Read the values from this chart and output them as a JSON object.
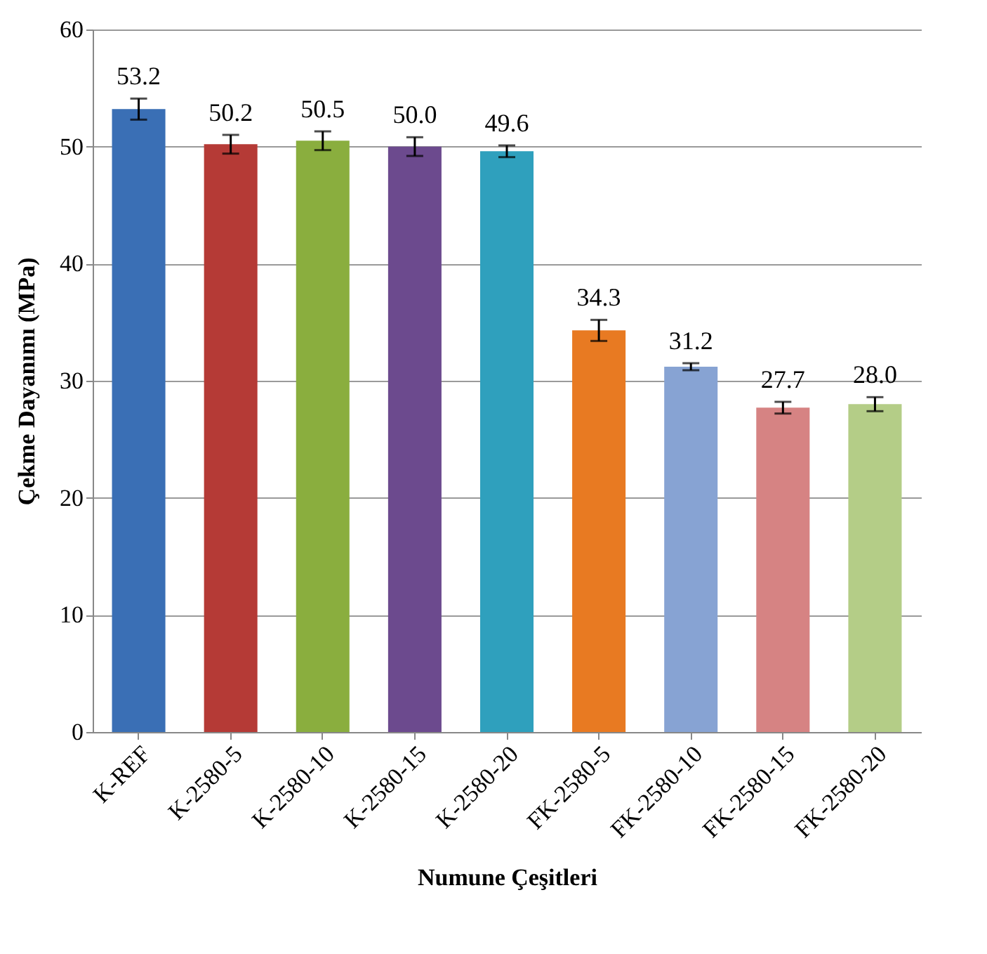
{
  "chart_data": {
    "type": "bar",
    "xlabel": "Numune Çeşitleri",
    "ylabel": "Çekme Dayanımı (MPa)",
    "categories": [
      "K-REF",
      "K-2580-5",
      "K-2580-10",
      "K-2580-15",
      "K-2580-20",
      "FK-2580-5",
      "FK-2580-10",
      "FK-2580-15",
      "FK-2580-20"
    ],
    "values": [
      53.2,
      50.2,
      50.5,
      50.0,
      49.6,
      34.3,
      31.2,
      27.7,
      28.0
    ],
    "colors": [
      "#3a6fb5",
      "#b53a36",
      "#8aae3e",
      "#6c4a8e",
      "#2fa0bd",
      "#e87a22",
      "#87a3d3",
      "#d68383",
      "#b4cd87"
    ],
    "errors": [
      0.9,
      0.8,
      0.8,
      0.8,
      0.5,
      0.9,
      0.3,
      0.5,
      0.6
    ],
    "value_labels": [
      "53.2",
      "50.2",
      "50.5",
      "50.0",
      "49.6",
      "34.3",
      "31.2",
      "27.7",
      "28.0"
    ],
    "ylim": [
      0,
      60
    ],
    "yticks": [
      0,
      10,
      20,
      30,
      40,
      50,
      60
    ],
    "grid": "y"
  }
}
